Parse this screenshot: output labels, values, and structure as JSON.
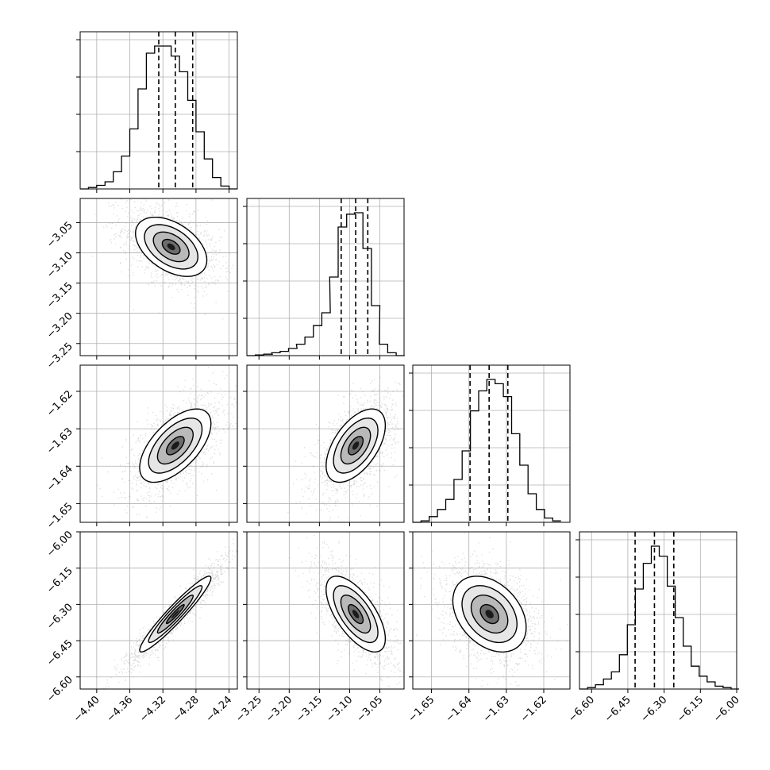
{
  "chart_data": {
    "type": "corner",
    "n_params": 4,
    "params": [
      {
        "index": 0,
        "range": [
          -4.42,
          -4.23
        ],
        "ticks": [
          -4.4,
          -4.36,
          -4.32,
          -4.28,
          -4.24
        ],
        "tick_labels": [
          "−4.40",
          "−4.36",
          "−4.32",
          "−4.28",
          "−4.24"
        ],
        "quantiles": [
          -4.325,
          -4.305,
          -4.284
        ],
        "hist": {
          "x": [
            -4.42,
            -4.41,
            -4.4,
            -4.39,
            -4.38,
            -4.37,
            -4.36,
            -4.35,
            -4.34,
            -4.33,
            -4.32,
            -4.31,
            -4.3,
            -4.29,
            -4.28,
            -4.27,
            -4.26,
            -4.25,
            -4.24
          ],
          "rel": [
            0.0,
            0.01,
            0.025,
            0.05,
            0.12,
            0.23,
            0.42,
            0.7,
            0.95,
            1.0,
            1.0,
            0.93,
            0.82,
            0.62,
            0.4,
            0.21,
            0.08,
            0.02,
            0.0
          ]
        }
      },
      {
        "index": 1,
        "range": [
          -3.27,
          -3.01
        ],
        "ticks": [
          -3.25,
          -3.2,
          -3.15,
          -3.1,
          -3.05
        ],
        "tick_labels": [
          "−3.25",
          "−3.20",
          "−3.15",
          "−3.10",
          "−3.05"
        ],
        "quantiles": [
          -3.114,
          -3.09,
          -3.07
        ],
        "hist": {
          "x": [
            -3.27,
            -3.256,
            -3.242,
            -3.229,
            -3.215,
            -3.201,
            -3.188,
            -3.174,
            -3.16,
            -3.146,
            -3.133,
            -3.119,
            -3.105,
            -3.092,
            -3.078,
            -3.064,
            -3.051,
            -3.037,
            -3.023
          ],
          "rel": [
            0.0,
            0.005,
            0.01,
            0.02,
            0.03,
            0.05,
            0.08,
            0.13,
            0.21,
            0.3,
            0.55,
            0.9,
            0.99,
            1.0,
            0.75,
            0.35,
            0.08,
            0.02,
            0.0
          ]
        }
      },
      {
        "index": 2,
        "range": [
          -1.655,
          -1.613
        ],
        "ticks": [
          -1.65,
          -1.64,
          -1.63,
          -1.62
        ],
        "tick_labels": [
          "−1.65",
          "−1.64",
          "−1.63",
          "−1.62"
        ],
        "quantiles": [
          -1.6397,
          -1.6346,
          -1.6296
        ],
        "hist": {
          "x": [
            -1.655,
            -1.6528,
            -1.6506,
            -1.6484,
            -1.6462,
            -1.644,
            -1.6418,
            -1.6396,
            -1.6374,
            -1.6352,
            -1.633,
            -1.6308,
            -1.6286,
            -1.6264,
            -1.6242,
            -1.622,
            -1.6198,
            -1.6176
          ],
          "rel": [
            0.0,
            0.01,
            0.04,
            0.09,
            0.16,
            0.3,
            0.5,
            0.78,
            0.92,
            1.0,
            0.97,
            0.88,
            0.62,
            0.4,
            0.2,
            0.09,
            0.03,
            0.01
          ]
        }
      },
      {
        "index": 3,
        "range": [
          -6.65,
          -6.0
        ],
        "ticks": [
          -6.6,
          -6.45,
          -6.3,
          -6.15,
          -6.0
        ],
        "tick_labels": [
          "−6.60",
          "−6.45",
          "−6.30",
          "−6.15",
          "−6.00"
        ],
        "quantiles": [
          -6.42,
          -6.34,
          -6.26
        ],
        "hist": {
          "x": [
            -6.65,
            -6.617,
            -6.584,
            -6.551,
            -6.518,
            -6.485,
            -6.452,
            -6.419,
            -6.386,
            -6.353,
            -6.32,
            -6.287,
            -6.254,
            -6.221,
            -6.188,
            -6.155,
            -6.122,
            -6.089,
            -6.056,
            -6.023
          ],
          "rel": [
            0.0,
            0.01,
            0.03,
            0.07,
            0.12,
            0.24,
            0.45,
            0.7,
            0.88,
            1.0,
            0.93,
            0.72,
            0.5,
            0.3,
            0.16,
            0.09,
            0.05,
            0.02,
            0.01,
            0.0
          ]
        }
      }
    ],
    "pairs": [
      {
        "row": 1,
        "col": 0,
        "center": [
          -4.31,
          -3.09
        ],
        "spread": [
          0.022,
          0.025
        ],
        "corr": -0.45,
        "contour_levels": [
          0.5,
          1.0,
          1.5,
          2.0
        ]
      },
      {
        "row": 2,
        "col": 0,
        "center": [
          -4.305,
          -1.6345
        ],
        "spread": [
          0.022,
          0.005
        ],
        "corr": 0.6,
        "contour_levels": [
          0.5,
          1.0,
          1.5,
          2.0
        ]
      },
      {
        "row": 2,
        "col": 1,
        "center": [
          -3.09,
          -1.6345
        ],
        "spread": [
          0.025,
          0.005
        ],
        "corr": 0.55,
        "contour_levels": [
          0.5,
          1.0,
          1.5,
          2.0
        ]
      },
      {
        "row": 3,
        "col": 0,
        "center": [
          -4.305,
          -6.34
        ],
        "spread": [
          0.022,
          0.08
        ],
        "corr": 0.95,
        "contour_levels": [
          0.5,
          1.0,
          1.5,
          2.0
        ]
      },
      {
        "row": 3,
        "col": 1,
        "center": [
          -3.09,
          -6.34
        ],
        "spread": [
          0.025,
          0.08
        ],
        "corr": -0.65,
        "contour_levels": [
          0.5,
          1.0,
          1.5,
          2.0
        ]
      },
      {
        "row": 3,
        "col": 2,
        "center": [
          -1.6345,
          -6.34
        ],
        "spread": [
          0.005,
          0.08
        ],
        "corr": -0.35,
        "contour_levels": [
          0.5,
          1.0,
          1.5,
          2.0
        ]
      }
    ],
    "grid": true,
    "quantile_line_style": "dashed",
    "colors": {
      "line": "#000000",
      "grid": "#b0b0b0",
      "scatter": "#9a9a9a",
      "density_dark": "#1a1a1a",
      "density_light": "#ffffff"
    }
  }
}
